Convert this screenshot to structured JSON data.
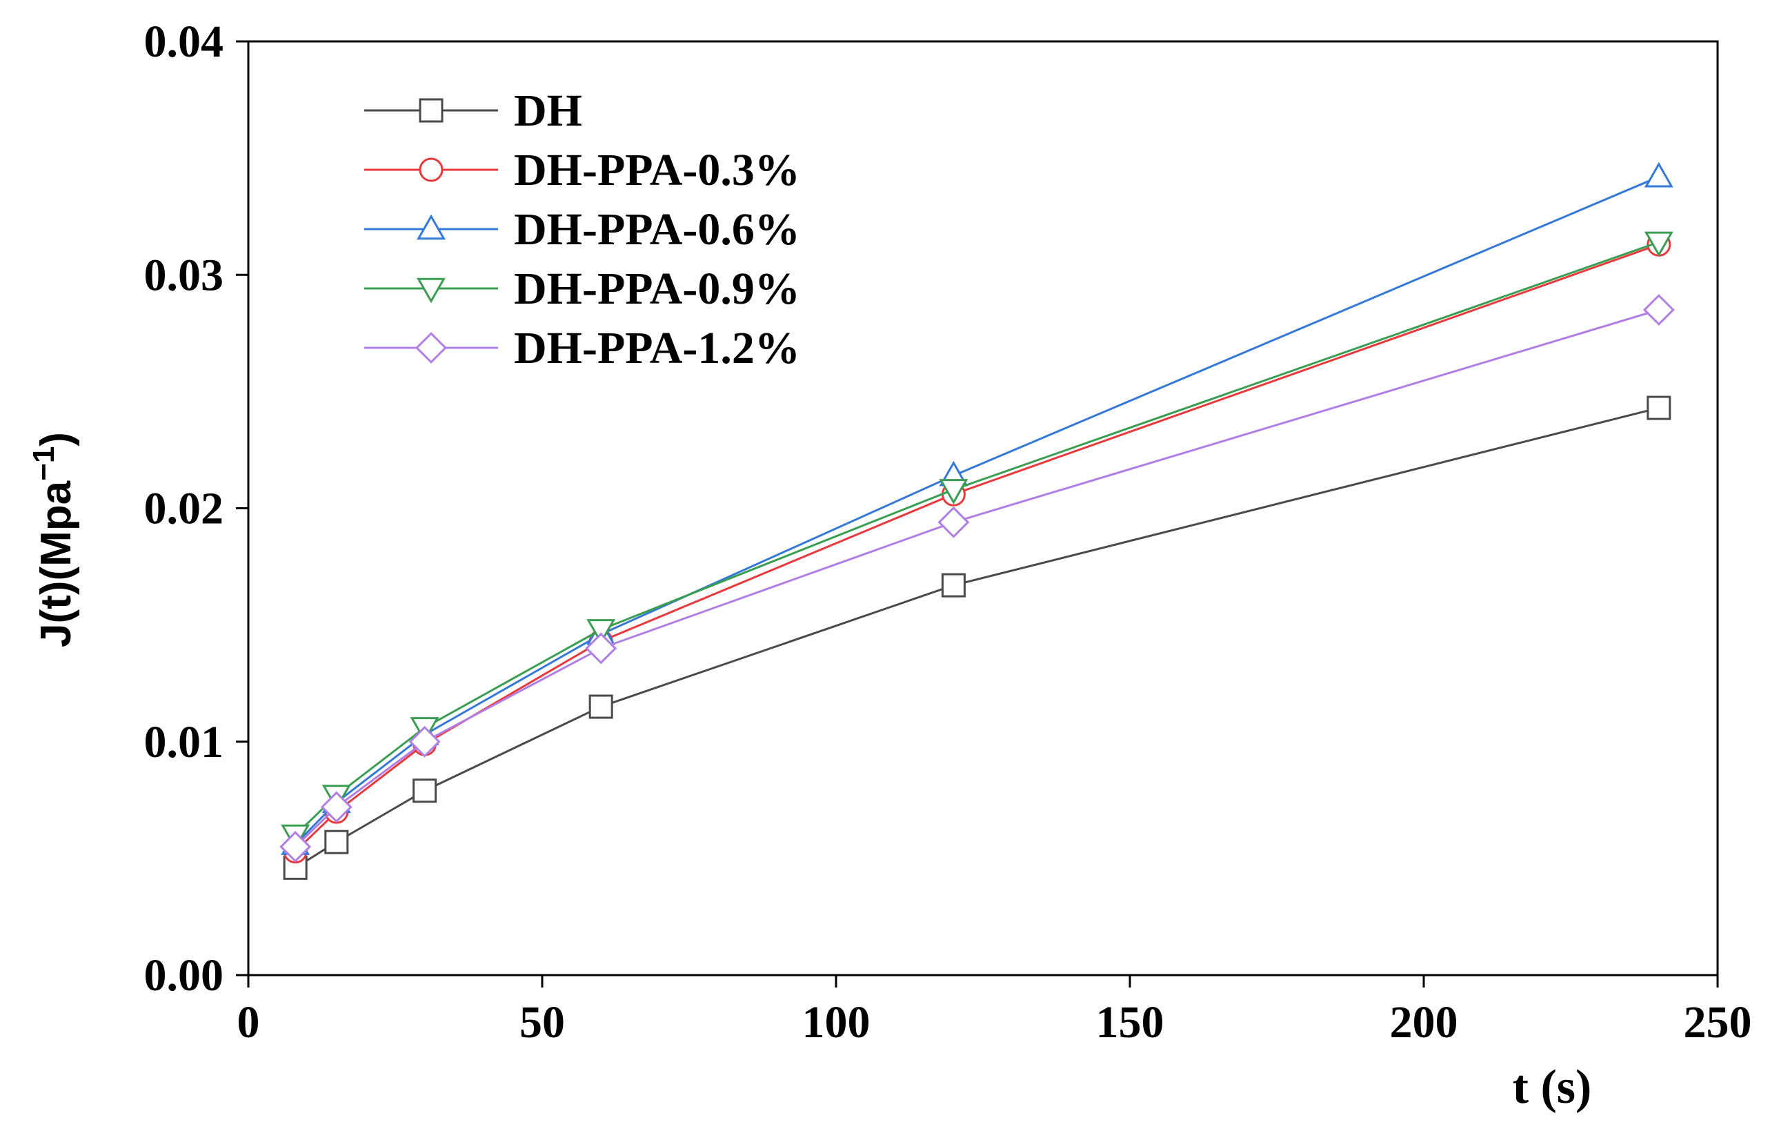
{
  "chart_data": {
    "type": "line",
    "title": "",
    "xlabel": "t (s)",
    "ylabel": {
      "main": "J(t)(Mpa",
      "superscript": "−1",
      "close": ")"
    },
    "xlim": [
      0,
      250
    ],
    "ylim": [
      0,
      0.04
    ],
    "x_ticks": [
      0,
      50,
      100,
      150,
      200,
      250
    ],
    "x_tick_labels": [
      "0",
      "50",
      "100",
      "150",
      "200",
      "250"
    ],
    "y_ticks": [
      0,
      0.01,
      0.02,
      0.03,
      0.04
    ],
    "y_tick_labels": [
      "0.00",
      "0.01",
      "0.02",
      "0.03",
      "0.04"
    ],
    "grid": false,
    "legend_position": "top-left",
    "x": [
      8,
      15,
      30,
      60,
      120,
      240
    ],
    "series": [
      {
        "name": "DH",
        "color": "#4a4a4a",
        "marker": "square",
        "values": [
          0.0046,
          0.0057,
          0.0079,
          0.0115,
          0.0167,
          0.0243
        ]
      },
      {
        "name": "DH-PPA-0.3%",
        "color": "#e8393c",
        "marker": "circle",
        "values": [
          0.0053,
          0.007,
          0.0099,
          0.0143,
          0.0206,
          0.0313
        ]
      },
      {
        "name": "DH-PPA-0.6%",
        "color": "#3478d8",
        "marker": "triangle-up",
        "values": [
          0.0056,
          0.0074,
          0.0103,
          0.0146,
          0.0214,
          0.0342
        ]
      },
      {
        "name": "DH-PPA-0.9%",
        "color": "#3a9e52",
        "marker": "triangle-down",
        "values": [
          0.006,
          0.0077,
          0.0106,
          0.0148,
          0.0208,
          0.0314
        ]
      },
      {
        "name": "DH-PPA-1.2%",
        "color": "#b07fe6",
        "marker": "diamond",
        "values": [
          0.0055,
          0.0072,
          0.01,
          0.014,
          0.0194,
          0.0285
        ]
      }
    ]
  }
}
